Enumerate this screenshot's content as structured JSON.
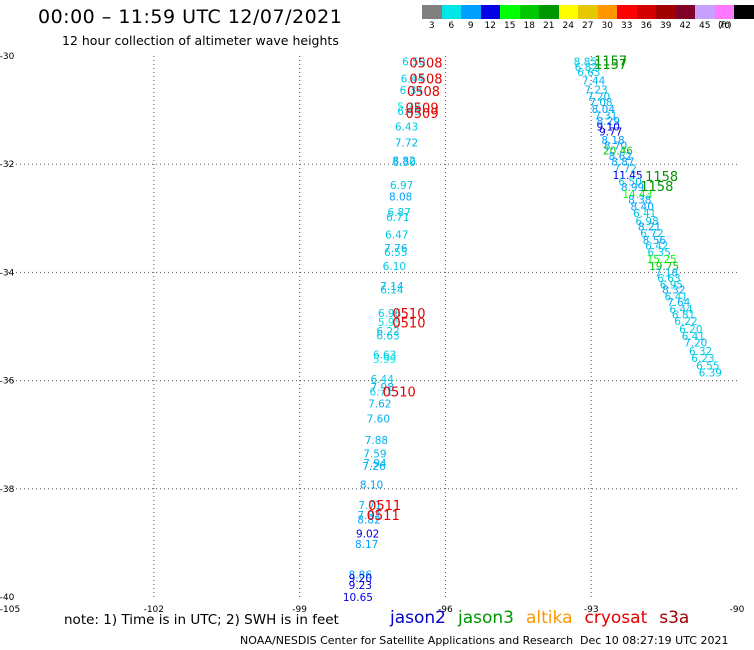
{
  "header": {
    "title": "00:00 – 11:59 UTC 12/07/2021",
    "subtitle": "12 hour collection of altimeter wave heights"
  },
  "legend": {
    "unit": "(ft)",
    "items": [
      {
        "label": "3",
        "color": "#808080"
      },
      {
        "label": "6",
        "color": "#00e6e6"
      },
      {
        "label": "9",
        "color": "#00a0ff"
      },
      {
        "label": "12",
        "color": "#0000e6"
      },
      {
        "label": "15",
        "color": "#00ff00"
      },
      {
        "label": "18",
        "color": "#00c800"
      },
      {
        "label": "21",
        "color": "#009600"
      },
      {
        "label": "24",
        "color": "#ffff00"
      },
      {
        "label": "27",
        "color": "#e6c800"
      },
      {
        "label": "30",
        "color": "#ff9600"
      },
      {
        "label": "33",
        "color": "#ff0000"
      },
      {
        "label": "36",
        "color": "#d20000"
      },
      {
        "label": "39",
        "color": "#a00000"
      },
      {
        "label": "42",
        "color": "#800028"
      },
      {
        "label": "45",
        "color": "#c8a0ff"
      },
      {
        "label": "70",
        "color": "#ff78ff"
      },
      {
        "label": "",
        "color": "#000000"
      }
    ]
  },
  "footer": {
    "note": "note: 1) Time is in UTC; 2) SWH is in feet",
    "credit": "NOAA/NESDIS Center for Satellite Applications and Research",
    "timestamp": "Dec 10 08:27:19 UTC 2021"
  },
  "satellites": [
    {
      "name": "jason2",
      "color": "#0000cc"
    },
    {
      "name": "jason3",
      "color": "#009600"
    },
    {
      "name": "altika",
      "color": "#ff9600"
    },
    {
      "name": "cryosat",
      "color": "#e60000"
    },
    {
      "name": "s3a",
      "color": "#a00000"
    }
  ],
  "chart_data": {
    "type": "scatter",
    "title": "00:00 – 11:59 UTC 12/07/2021",
    "xlim": [
      -105,
      -90
    ],
    "ylim": [
      -40,
      -30
    ],
    "x_ticks": [
      "-105",
      "-102",
      "-99",
      "-96",
      "-93",
      "-90"
    ],
    "y_ticks": [
      "-30",
      "-32",
      "-34",
      "-36",
      "-38",
      "-40"
    ],
    "grid": true,
    "track_a": [
      {
        "lon": -96.65,
        "lat": -30.1,
        "swh": "6.50",
        "color": "#00c8e6"
      },
      {
        "lon": -96.68,
        "lat": -30.42,
        "swh": "6.44",
        "color": "#00c8e6"
      },
      {
        "lon": -96.7,
        "lat": -30.63,
        "swh": "6.34",
        "color": "#00c8e6"
      },
      {
        "lon": -96.75,
        "lat": -30.93,
        "swh": "5.32",
        "color": "#00e6e6"
      },
      {
        "lon": -96.75,
        "lat": -31.02,
        "swh": "6.45",
        "color": "#00c8e6"
      },
      {
        "lon": -96.8,
        "lat": -31.3,
        "swh": "6.43",
        "color": "#00c8e6"
      },
      {
        "lon": -96.8,
        "lat": -31.6,
        "swh": "7.72",
        "color": "#00b4f0"
      },
      {
        "lon": -96.85,
        "lat": -31.93,
        "swh": "8.82",
        "color": "#00a0ff"
      },
      {
        "lon": -96.85,
        "lat": -31.96,
        "swh": "6.30",
        "color": "#00c8e6"
      },
      {
        "lon": -96.9,
        "lat": -32.38,
        "swh": "6.97",
        "color": "#00c8e6"
      },
      {
        "lon": -96.92,
        "lat": -32.6,
        "swh": "8.08",
        "color": "#00a0ff"
      },
      {
        "lon": -96.95,
        "lat": -32.88,
        "swh": "6.87",
        "color": "#00c8e6"
      },
      {
        "lon": -96.98,
        "lat": -32.98,
        "swh": "6.71",
        "color": "#00c8e6"
      },
      {
        "lon": -97.0,
        "lat": -33.3,
        "swh": "6.47",
        "color": "#00c8e6"
      },
      {
        "lon": -97.02,
        "lat": -33.55,
        "swh": "7.76",
        "color": "#00b4f0"
      },
      {
        "lon": -97.02,
        "lat": -33.62,
        "swh": "6.55",
        "color": "#00c8e6"
      },
      {
        "lon": -97.05,
        "lat": -33.88,
        "swh": "6.10",
        "color": "#00c8e6"
      },
      {
        "lon": -97.1,
        "lat": -34.25,
        "swh": "7.14",
        "color": "#00b4f0"
      },
      {
        "lon": -97.1,
        "lat": -34.32,
        "swh": "6.14",
        "color": "#00c8e6"
      },
      {
        "lon": -97.15,
        "lat": -34.75,
        "swh": "6.96",
        "color": "#00c8e6"
      },
      {
        "lon": -97.15,
        "lat": -34.92,
        "swh": "5.95",
        "color": "#00e6e6"
      },
      {
        "lon": -97.18,
        "lat": -35.08,
        "swh": "6.22",
        "color": "#00c8e6"
      },
      {
        "lon": -97.18,
        "lat": -35.17,
        "swh": "6.63",
        "color": "#00c8e6"
      },
      {
        "lon": -97.25,
        "lat": -35.52,
        "swh": "6.63",
        "color": "#00c8e6"
      },
      {
        "lon": -97.25,
        "lat": -35.6,
        "swh": "5.99",
        "color": "#00e6e6"
      },
      {
        "lon": -97.3,
        "lat": -35.97,
        "swh": "6.44",
        "color": "#00c8e6"
      },
      {
        "lon": -97.3,
        "lat": -36.12,
        "swh": "7.98",
        "color": "#00b4f0"
      },
      {
        "lon": -97.32,
        "lat": -36.2,
        "swh": "6.71",
        "color": "#00c8e6"
      },
      {
        "lon": -97.35,
        "lat": -36.42,
        "swh": "7.62",
        "color": "#00b4f0"
      },
      {
        "lon": -97.38,
        "lat": -36.7,
        "swh": "7.60",
        "color": "#00b4f0"
      },
      {
        "lon": -97.42,
        "lat": -37.1,
        "swh": "7.88",
        "color": "#00b4f0"
      },
      {
        "lon": -97.45,
        "lat": -37.35,
        "swh": "7.59",
        "color": "#00b4f0"
      },
      {
        "lon": -97.45,
        "lat": -37.52,
        "swh": "7.94",
        "color": "#00b4f0"
      },
      {
        "lon": -97.47,
        "lat": -37.58,
        "swh": "7.26",
        "color": "#00b4f0"
      },
      {
        "lon": -97.52,
        "lat": -37.92,
        "swh": "8.10",
        "color": "#00a0ff"
      },
      {
        "lon": -97.55,
        "lat": -38.3,
        "swh": "7.71",
        "color": "#00b4f0"
      },
      {
        "lon": -97.57,
        "lat": -38.48,
        "swh": "7.82",
        "color": "#00b4f0"
      },
      {
        "lon": -97.57,
        "lat": -38.57,
        "swh": "8.82",
        "color": "#00a0ff"
      },
      {
        "lon": -97.6,
        "lat": -38.83,
        "swh": "9.02",
        "color": "#0000e6"
      },
      {
        "lon": -97.62,
        "lat": -39.02,
        "swh": "8.17",
        "color": "#00a0ff"
      },
      {
        "lon": -97.75,
        "lat": -39.58,
        "swh": "8.86",
        "color": "#00a0ff"
      },
      {
        "lon": -97.75,
        "lat": -39.65,
        "swh": "9.20",
        "color": "#0000e6"
      },
      {
        "lon": -97.75,
        "lat": -39.78,
        "swh": "9.23",
        "color": "#0000e6"
      },
      {
        "lon": -97.8,
        "lat": -40.0,
        "swh": "10.65",
        "color": "#0000e6"
      }
    ],
    "track_b": [
      {
        "lon": -93.12,
        "lat": -30.1,
        "swh": "8.85",
        "color": "#00c8e6"
      },
      {
        "lon": -93.1,
        "lat": -30.2,
        "swh": "6.82",
        "color": "#00c8e6"
      },
      {
        "lon": -93.05,
        "lat": -30.3,
        "swh": "6.63",
        "color": "#00c8e6"
      },
      {
        "lon": -92.95,
        "lat": -30.45,
        "swh": "7.44",
        "color": "#00b4f0"
      },
      {
        "lon": -92.9,
        "lat": -30.62,
        "swh": "7.23",
        "color": "#00b4f0"
      },
      {
        "lon": -92.85,
        "lat": -30.75,
        "swh": "7.20",
        "color": "#00b4f0"
      },
      {
        "lon": -92.8,
        "lat": -30.85,
        "swh": "7.08",
        "color": "#00b4f0"
      },
      {
        "lon": -92.75,
        "lat": -30.98,
        "swh": "8.04",
        "color": "#00a0ff"
      },
      {
        "lon": -92.7,
        "lat": -31.1,
        "swh": "7.31",
        "color": "#00b4f0"
      },
      {
        "lon": -92.65,
        "lat": -31.2,
        "swh": "8.29",
        "color": "#00a0ff"
      },
      {
        "lon": -92.65,
        "lat": -31.3,
        "swh": "9.10",
        "color": "#0000e6"
      },
      {
        "lon": -92.6,
        "lat": -31.4,
        "swh": "9.77",
        "color": "#0000e6"
      },
      {
        "lon": -92.55,
        "lat": -31.55,
        "swh": "8.18",
        "color": "#00a0ff"
      },
      {
        "lon": -92.5,
        "lat": -31.65,
        "swh": "8.70",
        "color": "#00a0ff"
      },
      {
        "lon": -92.45,
        "lat": -31.75,
        "swh": "20.46",
        "color": "#00c800"
      },
      {
        "lon": -92.4,
        "lat": -31.85,
        "swh": "8.62",
        "color": "#00a0ff"
      },
      {
        "lon": -92.35,
        "lat": -31.95,
        "swh": "8.87",
        "color": "#00a0ff"
      },
      {
        "lon": -92.3,
        "lat": -32.08,
        "swh": "7.72",
        "color": "#00b4f0"
      },
      {
        "lon": -92.25,
        "lat": -32.2,
        "swh": "11.45",
        "color": "#0000e6"
      },
      {
        "lon": -92.2,
        "lat": -32.32,
        "swh": "6.50",
        "color": "#00c8e6"
      },
      {
        "lon": -92.15,
        "lat": -32.42,
        "swh": "8.99",
        "color": "#00a0ff"
      },
      {
        "lon": -92.05,
        "lat": -32.55,
        "swh": "14.43",
        "color": "#00ff00"
      },
      {
        "lon": -92.0,
        "lat": -32.65,
        "swh": "8.38",
        "color": "#00a0ff"
      },
      {
        "lon": -91.95,
        "lat": -32.78,
        "swh": "8.40",
        "color": "#00a0ff"
      },
      {
        "lon": -91.9,
        "lat": -32.9,
        "swh": "6.41",
        "color": "#00c8e6"
      },
      {
        "lon": -91.85,
        "lat": -33.05,
        "swh": "6.98",
        "color": "#00c8e6"
      },
      {
        "lon": -91.8,
        "lat": -33.15,
        "swh": "8.21",
        "color": "#00a0ff"
      },
      {
        "lon": -91.75,
        "lat": -33.27,
        "swh": "6.72",
        "color": "#00c8e6"
      },
      {
        "lon": -91.7,
        "lat": -33.4,
        "swh": "8.56",
        "color": "#00a0ff"
      },
      {
        "lon": -91.65,
        "lat": -33.5,
        "swh": "6.42",
        "color": "#00c8e6"
      },
      {
        "lon": -91.6,
        "lat": -33.62,
        "swh": "6.35",
        "color": "#00c8e6"
      },
      {
        "lon": -91.55,
        "lat": -33.75,
        "swh": "15.25",
        "color": "#00ff00"
      },
      {
        "lon": -91.5,
        "lat": -33.88,
        "swh": "19.75",
        "color": "#00c800"
      },
      {
        "lon": -91.45,
        "lat": -34.0,
        "swh": "7.18",
        "color": "#00b4f0"
      },
      {
        "lon": -91.4,
        "lat": -34.1,
        "swh": "6.63",
        "color": "#00c8e6"
      },
      {
        "lon": -91.35,
        "lat": -34.22,
        "swh": "6.95",
        "color": "#00c8e6"
      },
      {
        "lon": -91.3,
        "lat": -34.32,
        "swh": "8.32",
        "color": "#00a0ff"
      },
      {
        "lon": -91.25,
        "lat": -34.45,
        "swh": "6.41",
        "color": "#00c8e6"
      },
      {
        "lon": -91.2,
        "lat": -34.55,
        "swh": "7.64",
        "color": "#00b4f0"
      },
      {
        "lon": -91.15,
        "lat": -34.68,
        "swh": "6.44",
        "color": "#00c8e6"
      },
      {
        "lon": -91.1,
        "lat": -34.78,
        "swh": "6.81",
        "color": "#00c8e6"
      },
      {
        "lon": -91.05,
        "lat": -34.9,
        "swh": "6.22",
        "color": "#00c8e6"
      },
      {
        "lon": -90.95,
        "lat": -35.05,
        "swh": "6.20",
        "color": "#00c8e6"
      },
      {
        "lon": -90.9,
        "lat": -35.18,
        "swh": "6.41",
        "color": "#00c8e6"
      },
      {
        "lon": -90.85,
        "lat": -35.3,
        "swh": "7.20",
        "color": "#00b4f0"
      },
      {
        "lon": -90.75,
        "lat": -35.45,
        "swh": "6.32",
        "color": "#00c8e6"
      },
      {
        "lon": -90.7,
        "lat": -35.58,
        "swh": "6.23",
        "color": "#00c8e6"
      },
      {
        "lon": -90.6,
        "lat": -35.72,
        "swh": "6.55",
        "color": "#00c8e6"
      },
      {
        "lon": -90.55,
        "lat": -35.85,
        "swh": "6.39",
        "color": "#00c8e6"
      }
    ],
    "time_labels": [
      {
        "lon": -96.4,
        "lat": -30.12,
        "text": "0508",
        "color": "#e60000"
      },
      {
        "lon": -96.4,
        "lat": -30.42,
        "text": "0508",
        "color": "#e60000"
      },
      {
        "lon": -96.45,
        "lat": -30.65,
        "text": "0508",
        "color": "#e60000"
      },
      {
        "lon": -96.48,
        "lat": -30.95,
        "text": "0509",
        "color": "#e60000"
      },
      {
        "lon": -96.48,
        "lat": -31.05,
        "text": "0509",
        "color": "#e60000"
      },
      {
        "lon": -96.75,
        "lat": -34.75,
        "text": "0510",
        "color": "#e60000"
      },
      {
        "lon": -96.75,
        "lat": -34.93,
        "text": "0510",
        "color": "#e60000"
      },
      {
        "lon": -96.95,
        "lat": -36.2,
        "text": "0510",
        "color": "#e60000"
      },
      {
        "lon": -97.25,
        "lat": -38.3,
        "text": "0511",
        "color": "#e60000"
      },
      {
        "lon": -97.28,
        "lat": -38.48,
        "text": "0511",
        "color": "#e60000"
      },
      {
        "lon": -92.6,
        "lat": -30.08,
        "text": "1157",
        "color": "#009600"
      },
      {
        "lon": -92.6,
        "lat": -30.15,
        "text": "1157",
        "color": "#009600"
      },
      {
        "lon": -91.55,
        "lat": -32.22,
        "text": "1158",
        "color": "#009600"
      },
      {
        "lon": -91.65,
        "lat": -32.4,
        "text": "1158",
        "color": "#009600"
      }
    ]
  }
}
